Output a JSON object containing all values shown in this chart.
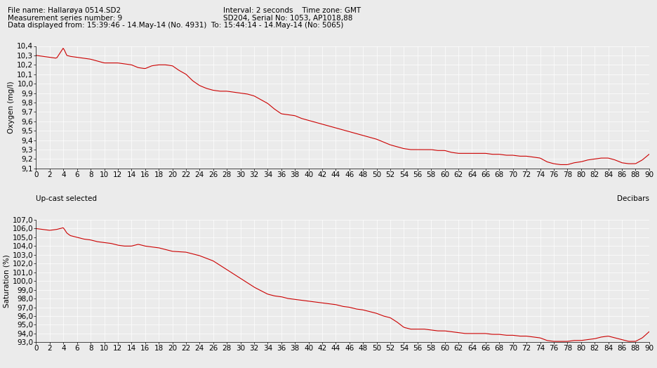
{
  "header_lines": [
    [
      "File name: Hallarøya 0514.SD2",
      "Interval: 2 seconds    Time zone: GMT"
    ],
    [
      "Measurement series number: 9",
      "SD204, Serial No: 1053, AP1018,88"
    ],
    [
      "Data displayed from: 15:39:46 - 14.May-14 (No. 4931)  To: 15:44:14 - 14.May-14 (No: 5065)",
      ""
    ]
  ],
  "top_chart": {
    "ylabel": "Oxygen (mg/l)",
    "ylim": [
      9.1,
      10.4
    ],
    "yticks": [
      9.1,
      9.2,
      9.3,
      9.4,
      9.5,
      9.6,
      9.7,
      9.8,
      9.9,
      10.0,
      10.1,
      10.2,
      10.3,
      10.4
    ],
    "xlim": [
      0,
      90
    ],
    "xticks": [
      0,
      2,
      4,
      6,
      8,
      10,
      12,
      14,
      16,
      18,
      20,
      22,
      24,
      26,
      28,
      30,
      32,
      34,
      36,
      38,
      40,
      42,
      44,
      46,
      48,
      50,
      52,
      54,
      56,
      58,
      60,
      62,
      64,
      66,
      68,
      70,
      72,
      74,
      76,
      78,
      80,
      82,
      84,
      86,
      88,
      90
    ],
    "right_label": "Decibars",
    "left_label": "Up-cast selected"
  },
  "bottom_chart": {
    "ylabel": "Saturation (%)",
    "ylim": [
      93.0,
      107.0
    ],
    "yticks": [
      93.0,
      94.0,
      95.0,
      96.0,
      97.0,
      98.0,
      99.0,
      100.0,
      101.0,
      102.0,
      103.0,
      104.0,
      105.0,
      106.0,
      107.0
    ],
    "xlim": [
      0,
      90
    ],
    "xticks": [
      0,
      2,
      4,
      6,
      8,
      10,
      12,
      14,
      16,
      18,
      20,
      22,
      24,
      26,
      28,
      30,
      32,
      34,
      36,
      38,
      40,
      42,
      44,
      46,
      48,
      50,
      52,
      54,
      56,
      58,
      60,
      62,
      64,
      66,
      68,
      70,
      72,
      74,
      76,
      78,
      80,
      82,
      84,
      86,
      88,
      90
    ]
  },
  "line_color": "#cc0000",
  "line_width": 0.8,
  "bg_color": "#ebebeb",
  "font_size": 7.5,
  "header_font_size": 7.5
}
